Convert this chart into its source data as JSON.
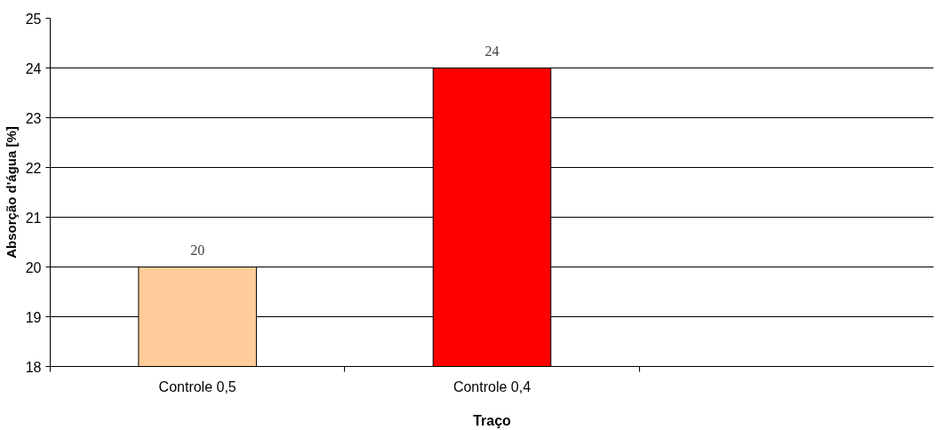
{
  "chart_data": {
    "type": "bar",
    "xlabel": "Traço",
    "ylabel": "Absorção d'água [%]",
    "categories": [
      "Controle 0,5",
      "Controle 0,4",
      null
    ],
    "values": [
      20,
      24,
      null
    ],
    "colors": [
      "#ffcc99",
      "#ff0000",
      null
    ],
    "ylim": [
      18,
      25
    ],
    "yticks": [
      18,
      19,
      20,
      21,
      22,
      23,
      24,
      25
    ],
    "grid": "y",
    "data_labels": true
  }
}
